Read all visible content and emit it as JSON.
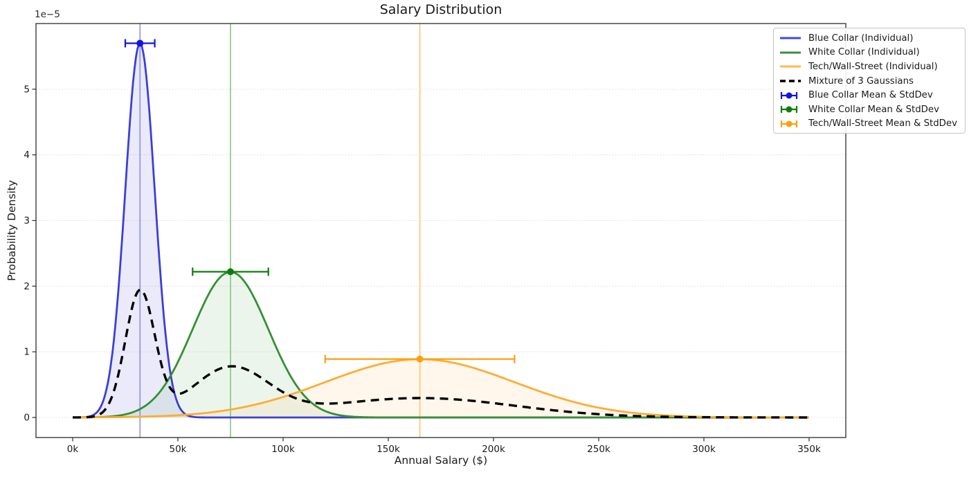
{
  "figure": {
    "title": "Salary Distribution",
    "xlabel": "Annual Salary ($)",
    "ylabel": "Probability Density",
    "offset_text": "1e−5"
  },
  "chart_data": {
    "type": "line",
    "title": "Salary Distribution",
    "xlabel": "Annual Salary ($)",
    "ylabel": "Probability Density",
    "y_offset_text": "1e−5",
    "x_range_dollars": [
      0,
      350000
    ],
    "xlim_dollars": [
      -17500,
      367500
    ],
    "ylim_density": [
      -3e-06,
      6e-05
    ],
    "grid": "horizontal dotted gridlines only",
    "legend_position": "upper right",
    "x_ticks": [
      {
        "value_k": 0,
        "label": "0k"
      },
      {
        "value_k": 50,
        "label": "50k"
      },
      {
        "value_k": 100,
        "label": "100k"
      },
      {
        "value_k": 150,
        "label": "150k"
      },
      {
        "value_k": 200,
        "label": "200k"
      },
      {
        "value_k": 250,
        "label": "250k"
      },
      {
        "value_k": 300,
        "label": "300k"
      },
      {
        "value_k": 350,
        "label": "350k"
      }
    ],
    "y_ticks": [
      {
        "value_1e5": 0,
        "label": "0"
      },
      {
        "value_1e5": 1,
        "label": "1"
      },
      {
        "value_1e5": 2,
        "label": "2"
      },
      {
        "value_1e5": 3,
        "label": "3"
      },
      {
        "value_1e5": 4,
        "label": "4"
      },
      {
        "value_1e5": 5,
        "label": "5"
      }
    ],
    "series": [
      {
        "name": "Blue Collar (Individual)",
        "kind": "gaussian",
        "mean_dollars": 32000,
        "std_dollars": 7000,
        "peak_density": 5.7e-05,
        "line_color": "#3d3dd8",
        "fill_color": "rgba(80,80,220,0.12)",
        "vline_color": "rgba(120,120,235,0.75)"
      },
      {
        "name": "White Collar (Individual)",
        "kind": "gaussian",
        "mean_dollars": 75000,
        "std_dollars": 18000,
        "peak_density": 2.22e-05,
        "line_color": "#349034",
        "fill_color": "rgba(70,160,70,0.10)",
        "vline_color": "rgba(120,190,120,0.8)"
      },
      {
        "name": "Tech/Wall-Street (Individual)",
        "kind": "gaussian",
        "mean_dollars": 165000,
        "std_dollars": 45000,
        "peak_density": 8.9e-06,
        "line_color": "#ffac33",
        "fill_color": "rgba(255,180,70,0.10)",
        "vline_color": "rgba(255,195,110,0.9)"
      },
      {
        "name": "Mixture of 3 Gaussians",
        "kind": "mixture",
        "weights": [
          0.3333,
          0.3333,
          0.3333
        ],
        "peak_density": 1.95e-05,
        "line_color": "#000000",
        "style": "dashed"
      }
    ],
    "errorbars": [
      {
        "name": "Blue Collar Mean & StdDev",
        "x_dollars": 32000,
        "xerr_dollars": 7000,
        "y_density": 5.7e-05,
        "color": "#1414dd"
      },
      {
        "name": "White Collar Mean & StdDev",
        "x_dollars": 75000,
        "xerr_dollars": 18000,
        "y_density": 2.22e-05,
        "color": "#0c7d0c"
      },
      {
        "name": "Tech/Wall-Street Mean & StdDev",
        "x_dollars": 165000,
        "xerr_dollars": 45000,
        "y_density": 8.9e-06,
        "color": "#ff9e0d"
      }
    ]
  },
  "legend": {
    "items": [
      {
        "label": "Blue Collar (Individual)",
        "swatch": "line",
        "color": "#4348dc"
      },
      {
        "label": "White Collar (Individual)",
        "swatch": "line",
        "color": "#3a8f3a"
      },
      {
        "label": "Tech/Wall-Street (Individual)",
        "swatch": "line",
        "color": "#ffb84d"
      },
      {
        "label": "Mixture of 3 Gaussians",
        "swatch": "dashed",
        "color": "#000000"
      },
      {
        "label": "Blue Collar Mean & StdDev",
        "swatch": "errorbar",
        "color": "#1414dd"
      },
      {
        "label": "White Collar Mean & StdDev",
        "swatch": "errorbar",
        "color": "#0c7d0c"
      },
      {
        "label": "Tech/Wall-Street Mean & StdDev",
        "swatch": "errorbar",
        "color": "#ff9e0d"
      }
    ]
  }
}
